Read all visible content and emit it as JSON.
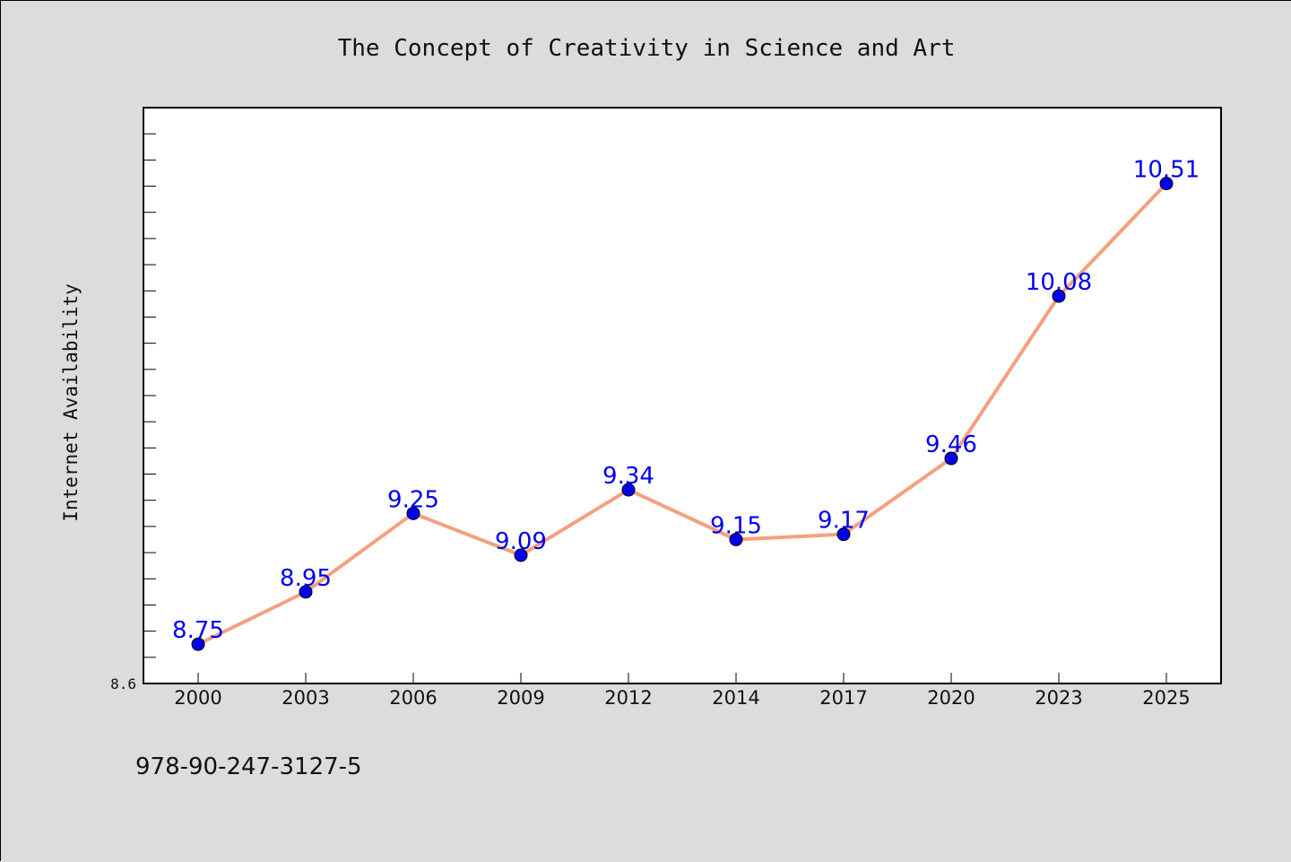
{
  "colors": {
    "background": "#dcdcdc",
    "plot_background": "#ffffff",
    "line": "#f4a07e",
    "marker": "#0000ee",
    "data_label": "#0000ee",
    "axis": "#000000"
  },
  "footer": {
    "isbn": "978-90-247-3127-5"
  },
  "chart_data": {
    "type": "line",
    "title": "The Concept of Creativity in Science and Art",
    "xlabel": "",
    "ylabel": "Internet Availability",
    "categories": [
      "2000",
      "2003",
      "2006",
      "2009",
      "2012",
      "2014",
      "2017",
      "2020",
      "2023",
      "2025"
    ],
    "values": [
      8.75,
      8.95,
      9.25,
      9.09,
      9.34,
      9.15,
      9.17,
      9.46,
      10.08,
      10.51
    ],
    "data_labels": [
      "8.75",
      "8.95",
      "9.25",
      "9.09",
      "9.34",
      "9.15",
      "9.17",
      "9.46",
      "10.08",
      "10.51"
    ],
    "ylim": [
      8.6,
      10.8
    ],
    "ytick_labels": [
      {
        "value": 8.6,
        "label": "8.6"
      }
    ],
    "ytick_step": 0.1,
    "grid": false,
    "markers": true
  }
}
